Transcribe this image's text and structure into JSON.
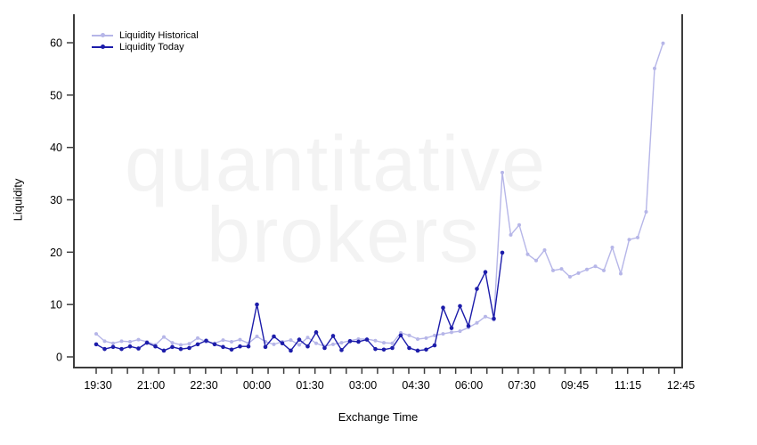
{
  "watermark": {
    "line1": "quantitative",
    "line2": "brokers"
  },
  "axes": {
    "y_label": "Liquidity",
    "x_label": "Exchange Time"
  },
  "chart_data": {
    "type": "line",
    "title": "",
    "xlabel": "Exchange Time",
    "ylabel": "Liquidity",
    "ylim": [
      0,
      62
    ],
    "grid": false,
    "legend_position": "top-left-inside",
    "y_ticks": [
      0,
      10,
      20,
      30,
      40,
      50,
      60
    ],
    "x_tick_labels": [
      "19:30",
      "21:00",
      "22:30",
      "00:00",
      "01:30",
      "03:00",
      "04:30",
      "06:00",
      "07:30",
      "09:45",
      "11:15",
      "12:45"
    ],
    "x_minor_tick_count": 38,
    "x_unit": "30-minute exchange-time buckets, labels every 3rd bucket group",
    "series": [
      {
        "name": "Liquidity Historical",
        "color": "#b6b6e8",
        "marker": "dot",
        "values": [
          4.4,
          3.0,
          2.6,
          3.0,
          2.9,
          3.3,
          2.9,
          2.3,
          3.8,
          2.7,
          2.3,
          2.5,
          3.6,
          2.9,
          2.6,
          3.2,
          2.9,
          3.3,
          2.6,
          3.9,
          2.9,
          2.4,
          2.9,
          3.2,
          2.3,
          3.7,
          2.6,
          2.0,
          2.4,
          2.7,
          3.1,
          3.4,
          3.4,
          3.1,
          2.7,
          2.6,
          4.6,
          4.1,
          3.4,
          3.6,
          4.1,
          4.4,
          4.7,
          4.9,
          5.6,
          6.5,
          7.7,
          7.1,
          35.2,
          23.3,
          25.2,
          19.6,
          18.4,
          20.4,
          16.5,
          16.8,
          15.3,
          16.0,
          16.7,
          17.3,
          16.5,
          20.9,
          15.9,
          22.4,
          22.8,
          27.7,
          55.1,
          59.9
        ]
      },
      {
        "name": "Liquidity Today",
        "color": "#1c1caa",
        "marker": "dot",
        "values": [
          2.4,
          1.5,
          1.9,
          1.5,
          2.0,
          1.6,
          2.7,
          2.0,
          1.2,
          1.9,
          1.5,
          1.7,
          2.4,
          3.1,
          2.4,
          1.9,
          1.4,
          2.0,
          2.0,
          10.0,
          1.9,
          3.9,
          2.6,
          1.2,
          3.3,
          2.0,
          4.7,
          1.7,
          4.0,
          1.3,
          3.0,
          2.9,
          3.3,
          1.5,
          1.4,
          1.7,
          4.1,
          1.7,
          1.2,
          1.4,
          2.2,
          9.4,
          5.5,
          9.7,
          5.9,
          13.0,
          16.2,
          7.3,
          19.9
        ]
      }
    ]
  }
}
